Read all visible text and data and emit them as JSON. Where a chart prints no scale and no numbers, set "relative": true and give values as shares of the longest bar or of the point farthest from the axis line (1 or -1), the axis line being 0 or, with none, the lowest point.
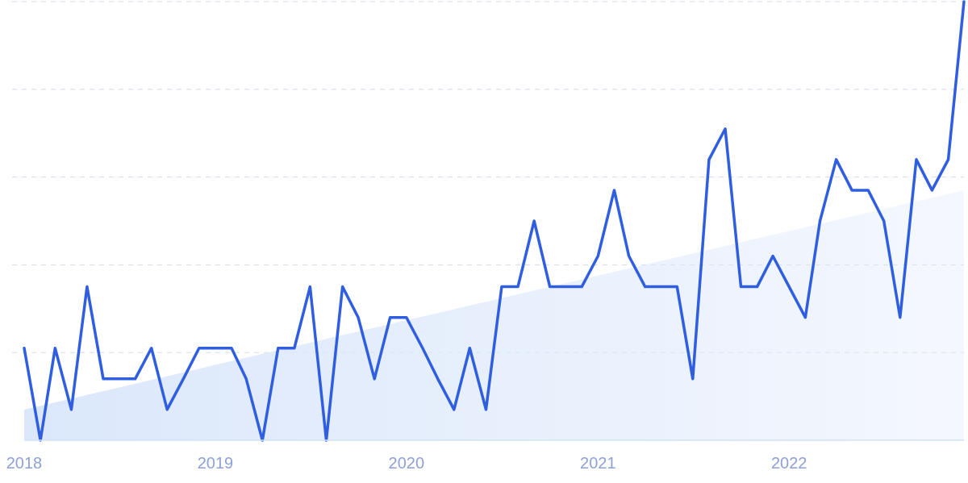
{
  "chart_data": {
    "type": "line",
    "relative": true,
    "grid": true,
    "line_style": "solid",
    "marker": "none",
    "xlim": [
      "2018-01",
      "2022-12"
    ],
    "xticks": [
      {
        "value": "2018-01",
        "label": "2018"
      },
      {
        "value": "2019-01",
        "label": "2019"
      },
      {
        "value": "2020-01",
        "label": "2020"
      },
      {
        "value": "2021-01",
        "label": "2021"
      },
      {
        "value": "2022-01",
        "label": "2022"
      }
    ],
    "x": [
      "2018-01",
      "2018-02",
      "2018-03",
      "2018-04",
      "2018-05",
      "2018-06",
      "2018-07",
      "2018-08",
      "2018-09",
      "2018-10",
      "2018-11",
      "2018-12",
      "2019-01",
      "2019-02",
      "2019-03",
      "2019-04",
      "2019-05",
      "2019-06",
      "2019-07",
      "2019-08",
      "2019-09",
      "2019-10",
      "2019-11",
      "2019-12",
      "2020-01",
      "2020-02",
      "2020-03",
      "2020-04",
      "2020-05",
      "2020-06",
      "2020-07",
      "2020-08",
      "2020-09",
      "2020-10",
      "2020-11",
      "2020-12",
      "2021-01",
      "2021-02",
      "2021-03",
      "2021-04",
      "2021-05",
      "2021-06",
      "2021-07",
      "2021-08",
      "2021-09",
      "2021-10",
      "2021-11",
      "2021-12",
      "2022-01",
      "2022-02",
      "2022-03",
      "2022-04",
      "2022-05",
      "2022-06",
      "2022-07",
      "2022-08",
      "2022-09",
      "2022-10",
      "2022-11",
      "2022-12"
    ],
    "series": [
      {
        "type": "area",
        "color": "#dbe7fb",
        "x": [
          "2018-01",
          "2022-12"
        ],
        "values": [
          0.07,
          0.57
        ]
      },
      {
        "color": "#2f5fe0",
        "values": [
          0.21,
          0,
          0.21,
          0.07,
          0.35,
          0.14,
          0.14,
          0.14,
          0.21,
          0.07,
          0.14,
          0.21,
          0.21,
          0.21,
          0.14,
          0,
          0.21,
          0.21,
          0.35,
          0,
          0.35,
          0.28,
          0.14,
          0.28,
          0.28,
          0.21,
          0.14,
          0.07,
          0.21,
          0.07,
          0.35,
          0.35,
          0.5,
          0.35,
          0.35,
          0.35,
          0.42,
          0.57,
          0.42,
          0.35,
          0.35,
          0.35,
          0.14,
          0.64,
          0.71,
          0.35,
          0.35,
          0.42,
          0.35,
          0.28,
          0.5,
          0.64,
          0.57,
          0.57,
          0.5,
          0.28,
          0.64,
          0.57,
          0.64,
          1
        ]
      }
    ]
  }
}
